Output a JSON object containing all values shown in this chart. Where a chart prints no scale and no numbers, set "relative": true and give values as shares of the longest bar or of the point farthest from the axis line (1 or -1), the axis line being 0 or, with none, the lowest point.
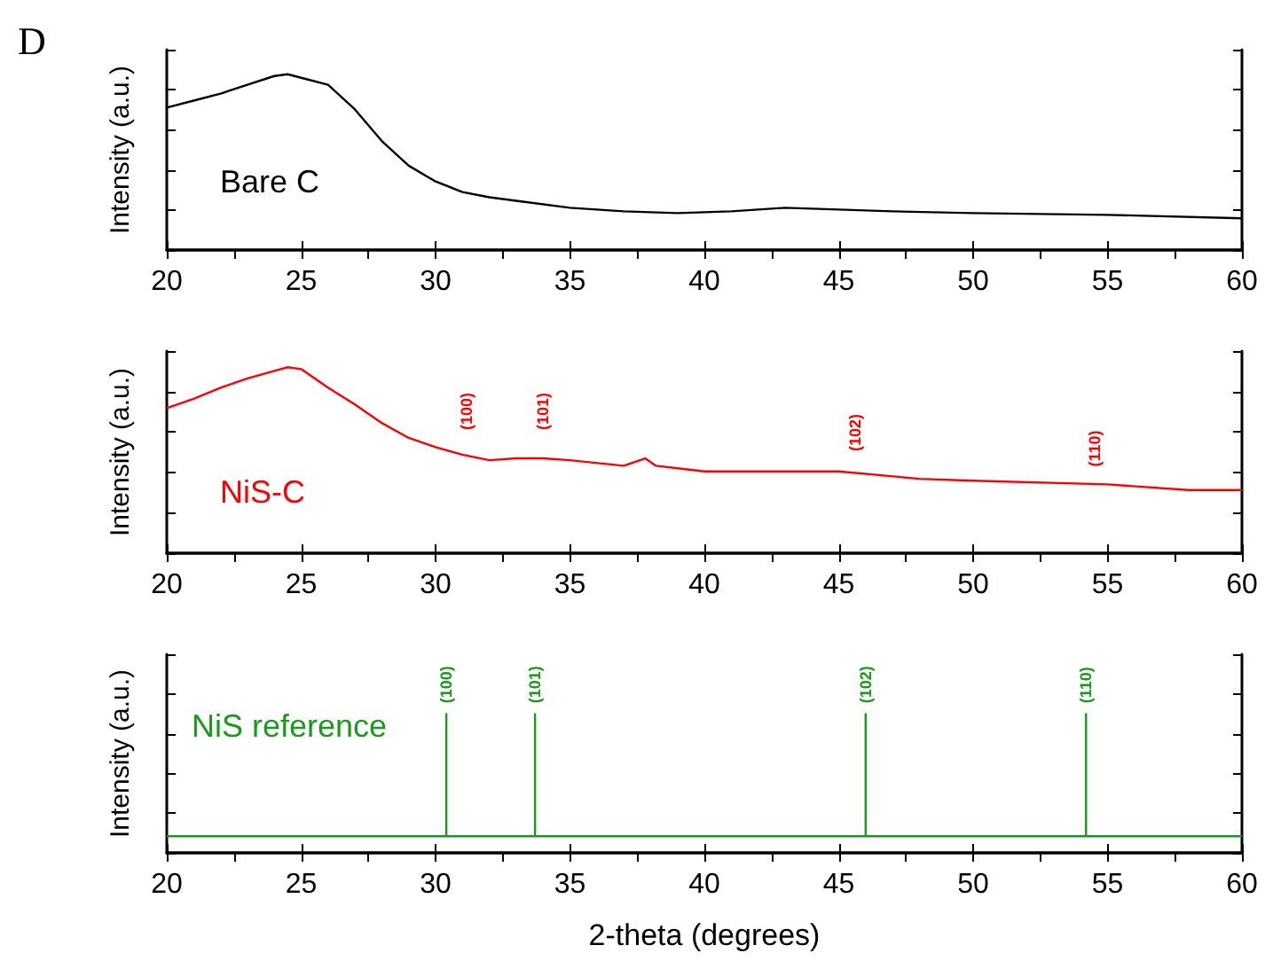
{
  "chart_data": [
    {
      "type": "line",
      "title": "D",
      "ylabel": "Intensity (a.u.)",
      "relative": true,
      "tick_labels": "x",
      "xlim": [
        20,
        60
      ],
      "xticks": [
        20,
        25,
        30,
        35,
        40,
        45,
        50,
        55,
        60
      ],
      "series": [
        {
          "name": "Bare C",
          "color": "#000000",
          "x": [
            20,
            21,
            22,
            23,
            24,
            24.5,
            25,
            26,
            27,
            28,
            29,
            30,
            31,
            32,
            33,
            35,
            37,
            39,
            41,
            43,
            45,
            47,
            50,
            55,
            60
          ],
          "values": [
            0.81,
            0.85,
            0.89,
            0.94,
            0.99,
            1,
            0.98,
            0.94,
            0.8,
            0.62,
            0.48,
            0.39,
            0.33,
            0.3,
            0.28,
            0.24,
            0.22,
            0.21,
            0.22,
            0.24,
            0.23,
            0.22,
            0.21,
            0.2,
            0.18
          ]
        }
      ]
    },
    {
      "type": "line",
      "ylabel": "Intensity (a.u.)",
      "relative": true,
      "tick_labels": "x",
      "xlim": [
        20,
        60
      ],
      "xticks": [
        20,
        25,
        30,
        35,
        40,
        45,
        50,
        55,
        60
      ],
      "series": [
        {
          "name": "NiS-C",
          "color": "#ff0000",
          "x": [
            20,
            21,
            22,
            23,
            24,
            24.5,
            25,
            26,
            27,
            28,
            29,
            30,
            31,
            32,
            33,
            34,
            35,
            37,
            37.8,
            38.2,
            40,
            42,
            45,
            48,
            50,
            55,
            58,
            60
          ],
          "values": [
            0.78,
            0.83,
            0.89,
            0.94,
            0.98,
            1,
            0.99,
            0.89,
            0.8,
            0.7,
            0.62,
            0.57,
            0.53,
            0.5,
            0.51,
            0.51,
            0.5,
            0.47,
            0.51,
            0.47,
            0.44,
            0.44,
            0.44,
            0.4,
            0.39,
            0.37,
            0.34,
            0.34
          ]
        }
      ],
      "annotations": [
        "(100)",
        "(101)",
        "(102)",
        "(110)"
      ]
    },
    {
      "type": "line",
      "ylabel": "Intensity (a.u.)",
      "xlabel": "2-theta (degrees)",
      "relative": true,
      "tick_labels": "x",
      "xlim": [
        20,
        60
      ],
      "xticks": [
        20,
        25,
        30,
        35,
        40,
        45,
        50,
        55,
        60
      ],
      "series": [
        {
          "name": "NiS reference",
          "color": "#1a9a1a",
          "x": [
            20,
            30.4,
            30.4,
            30.4,
            33.7,
            33.7,
            33.7,
            46,
            46,
            46,
            54.2,
            54.2,
            54.2,
            60
          ],
          "values": [
            0.12,
            0.12,
            1,
            0.12,
            0.12,
            1,
            0.12,
            0.12,
            1,
            0.12,
            0.12,
            1,
            0.12,
            0.12
          ]
        }
      ],
      "annotations": [
        {
          "text": "(100)",
          "x": 30.4,
          "y": 1
        },
        {
          "text": "(101)",
          "x": 33.7,
          "y": 1
        },
        {
          "text": "(102)",
          "x": 46,
          "y": 1
        },
        {
          "text": "(110)",
          "x": 54.2,
          "y": 1
        }
      ]
    }
  ]
}
